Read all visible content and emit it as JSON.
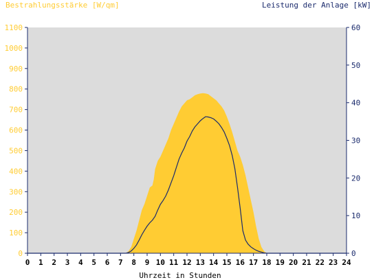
{
  "chart_data": {
    "type": "area",
    "left_axis_title": "Bestrahlungsstärke [W/qm]",
    "right_axis_title": "Leistung der Anlage [kW]",
    "xlabel": "Uhrzeit in Stunden",
    "xlim": [
      0,
      24
    ],
    "ylim_left": [
      0,
      1100
    ],
    "ylim_right": [
      0,
      60
    ],
    "x_ticks": [
      "0",
      "1",
      "2",
      "3",
      "4",
      "5",
      "6",
      "7",
      "8",
      "9",
      "10",
      "11",
      "12",
      "13",
      "14",
      "15",
      "16",
      "17",
      "18",
      "19",
      "20",
      "21",
      "22",
      "23",
      "24"
    ],
    "y_left_ticks": [
      "0",
      "100",
      "200",
      "300",
      "400",
      "500",
      "600",
      "700",
      "800",
      "900",
      "1000",
      "1100"
    ],
    "y_right_ticks": [
      "0",
      "10",
      "20",
      "30",
      "40",
      "50",
      "60"
    ],
    "grid": false,
    "colors": {
      "plot_background": "#dcdcdc",
      "irradiance_fill": "#ffcc33",
      "power_line": "#1a2a6c",
      "left_axis_text": "#ffcc33",
      "right_axis_text": "#1a2a6c",
      "x_axis_text": "#000000"
    },
    "series": [
      {
        "axis": "left",
        "style": "area",
        "x": [
          0,
          7.4,
          7.6,
          7.8,
          8.0,
          8.2,
          8.4,
          8.6,
          8.8,
          9.0,
          9.2,
          9.4,
          9.5,
          9.6,
          9.8,
          10.0,
          10.2,
          10.4,
          10.6,
          10.8,
          11.0,
          11.2,
          11.4,
          11.6,
          11.8,
          12.0,
          12.2,
          12.4,
          12.6,
          12.8,
          13.0,
          13.2,
          13.4,
          13.6,
          13.8,
          14.0,
          14.2,
          14.4,
          14.6,
          14.8,
          15.0,
          15.2,
          15.4,
          15.6,
          15.8,
          16.0,
          16.2,
          16.4,
          16.6,
          16.8,
          17.0,
          17.2,
          17.4,
          17.6,
          17.8,
          18.0,
          24
        ],
        "y": [
          0,
          0,
          10,
          30,
          70,
          110,
          160,
          210,
          240,
          280,
          320,
          330,
          360,
          410,
          450,
          470,
          500,
          530,
          560,
          600,
          630,
          660,
          690,
          715,
          730,
          745,
          750,
          760,
          770,
          775,
          778,
          780,
          778,
          775,
          765,
          755,
          745,
          730,
          715,
          695,
          665,
          630,
          590,
          545,
          500,
          470,
          430,
          380,
          320,
          260,
          200,
          130,
          70,
          30,
          10,
          0,
          0
        ]
      },
      {
        "axis": "right",
        "style": "line",
        "x": [
          0,
          7.4,
          7.6,
          7.8,
          8.0,
          8.2,
          8.4,
          8.6,
          8.8,
          9.0,
          9.2,
          9.4,
          9.6,
          9.8,
          10.0,
          10.2,
          10.4,
          10.6,
          10.8,
          11.0,
          11.2,
          11.4,
          11.6,
          11.8,
          12.0,
          12.2,
          12.4,
          12.6,
          12.8,
          13.0,
          13.2,
          13.4,
          13.6,
          13.8,
          14.0,
          14.2,
          14.4,
          14.6,
          14.8,
          15.0,
          15.2,
          15.4,
          15.6,
          15.8,
          16.0,
          16.2,
          16.4,
          16.6,
          16.8,
          17.0,
          17.2,
          17.4,
          17.6,
          17.8,
          18.0,
          24
        ],
        "y": [
          0,
          0,
          0.2,
          0.6,
          1.3,
          2.2,
          3.5,
          4.9,
          6.1,
          7.2,
          8.1,
          8.8,
          9.8,
          11.5,
          13.0,
          14.0,
          15.2,
          16.8,
          18.7,
          20.6,
          22.8,
          25.0,
          26.6,
          28.0,
          29.8,
          31.0,
          32.5,
          33.6,
          34.4,
          35.2,
          35.8,
          36.3,
          36.2,
          36.0,
          35.7,
          35.1,
          34.4,
          33.4,
          32.2,
          30.5,
          28.6,
          26.0,
          22.5,
          17.5,
          12.0,
          6.0,
          3.5,
          2.4,
          1.7,
          1.2,
          0.8,
          0.5,
          0.3,
          0.1,
          0,
          0
        ]
      }
    ]
  }
}
